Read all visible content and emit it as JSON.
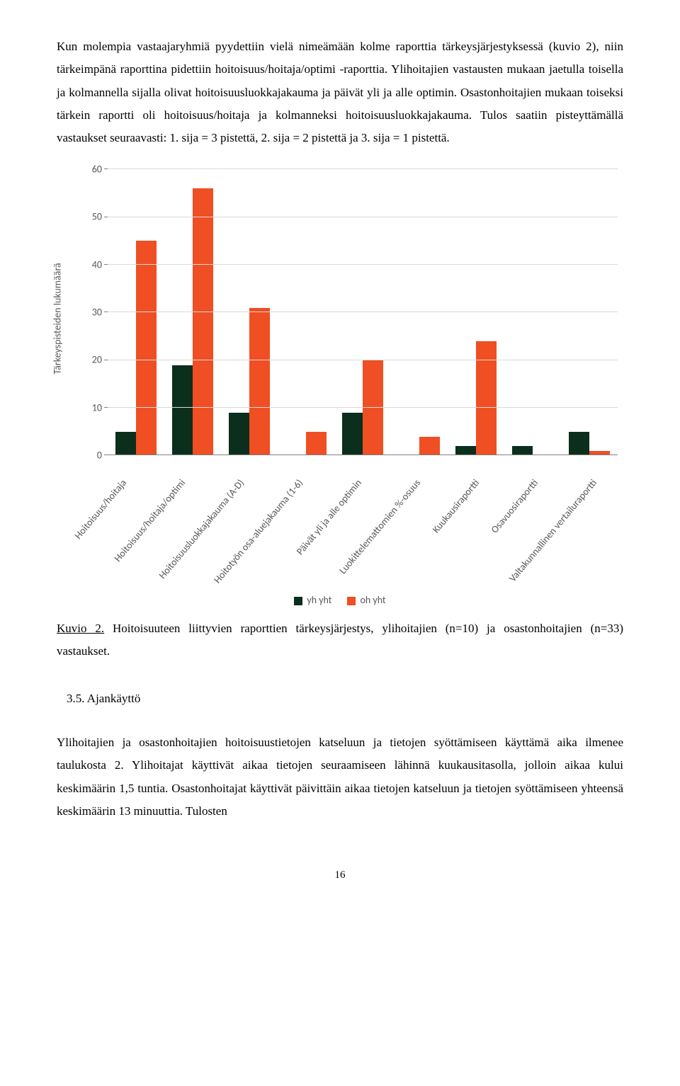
{
  "paragraphs": {
    "p1": "Kun molempia vastaajaryhmiä pyydettiin vielä nimeämään kolme raporttia tärkeysjärjestyksessä (kuvio 2), niin tärkeimpänä raporttina pidettiin hoitoisuus/hoitaja/optimi -raporttia. Ylihoitajien vastausten mukaan jaetulla toisella ja kolmannella sijalla olivat hoitoisuusluokkajakauma ja päivät yli ja alle optimin. Osastonhoitajien mukaan toiseksi tärkein raportti oli hoitoisuus/hoitaja ja kolmanneksi hoitoisuusluokkajakauma. Tulos saatiin pisteyttämällä vastaukset seuraavasti: 1. sija = 3 pistettä, 2. sija = 2 pistettä ja 3. sija = 1 pistettä.",
    "p2": "Ylihoitajien ja osastonhoitajien hoitoisuustietojen katseluun ja tietojen syöttämiseen käyttämä aika ilmenee taulukosta 2. Ylihoitajat käyttivät aikaa tietojen seuraamiseen lähinnä kuukausitasolla, jolloin aikaa kului keskimäärin 1,5 tuntia. Osastonhoitajat käyttivät päivittäin aikaa tietojen katseluun ja tietojen syöttämiseen yhteensä keskimäärin 13 minuuttia. Tulosten"
  },
  "chart": {
    "type": "bar",
    "y_axis_label": "Tärkeyspisteiden lukumäärä",
    "ymax": 60,
    "ytick_step": 10,
    "yticks": [
      0,
      10,
      20,
      30,
      40,
      50,
      60
    ],
    "categories": [
      "Hoitoisuus/hoitaja",
      "Hoitoisuus/hoitaja/optimi",
      "Hoitoisuusluokkajakauma (A-D)",
      "Hoitotyön osa-aluejakauma (1-6)",
      "Päivät yli ja alle optimin",
      "Luokittelemattomien %-osuus",
      "Kuukausiraportti",
      "Osavuosiraportti",
      "Valtakunnallinen vertailuraportti"
    ],
    "series": {
      "yh": {
        "label": "yh  yht",
        "color": "#0b2e1d",
        "values": [
          5,
          19,
          9,
          0,
          9,
          0,
          2,
          2,
          5
        ]
      },
      "oh": {
        "label": "oh  yht",
        "color": "#f04e23",
        "values": [
          45,
          56,
          31,
          5,
          20,
          4,
          24,
          0,
          1
        ]
      }
    },
    "grid_color": "#d9d9d9",
    "axis_color": "#808080",
    "tick_font_color": "#595959",
    "tick_fontsize": 14,
    "background_color": "#ffffff"
  },
  "caption": {
    "lead": "Kuvio 2.",
    "rest": " Hoitoisuuteen liittyvien raporttien tärkeysjärjestys, ylihoitajien (n=10) ja osastonhoitajien (n=33) vastaukset."
  },
  "subheading": "3.5. Ajankäyttö",
  "page_number": "16"
}
